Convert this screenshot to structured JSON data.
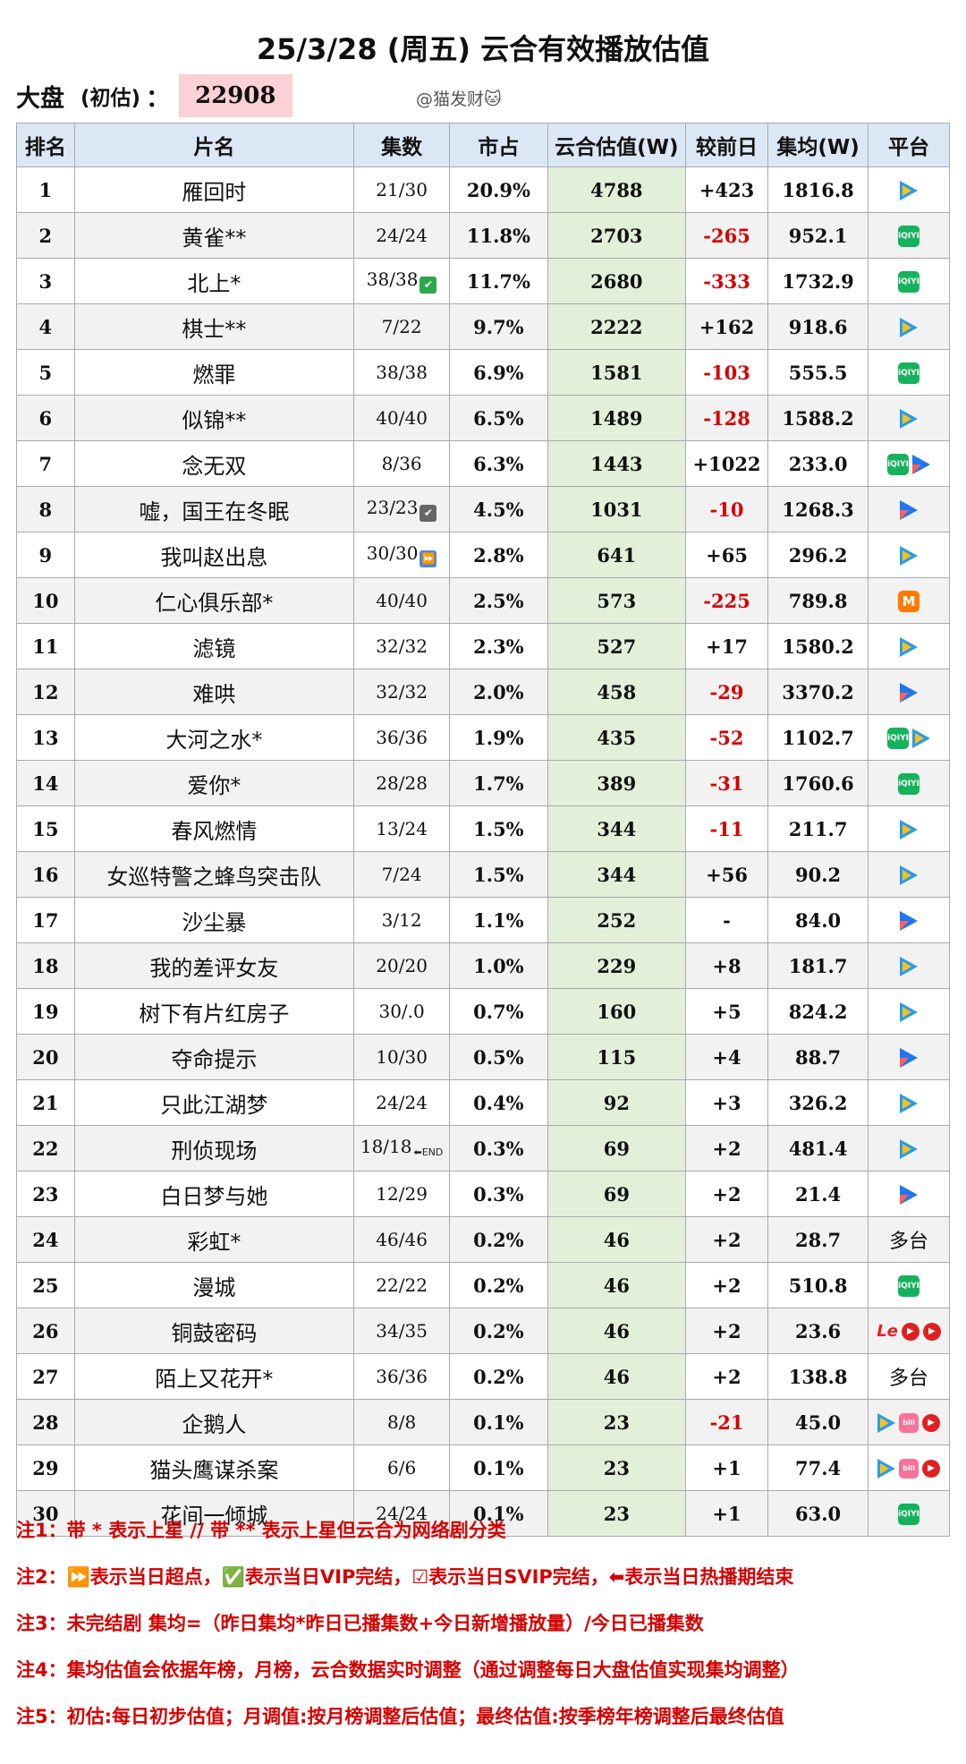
{
  "title": "25/3/28 (周五) 云合有效播放估值",
  "summary": {
    "label": "大盘",
    "sub": "(初估)",
    "colon": "：",
    "value": "22908"
  },
  "credit": "@猫发财🐱",
  "headers": [
    "排名",
    "片名",
    "集数",
    "市占",
    "云合估值(W)",
    "较前日",
    "集均(W)",
    "平台"
  ],
  "rows": [
    {
      "rank": "1",
      "name": "雁回时",
      "ep": "21/30",
      "mark": "",
      "share": "20.9%",
      "est": "4788",
      "chg": "+423",
      "avg": "1816.8",
      "plat": [
        "tencent-icon"
      ]
    },
    {
      "rank": "2",
      "name": "黄雀**",
      "ep": "24/24",
      "mark": "",
      "share": "11.8%",
      "est": "2703",
      "chg": "-265",
      "avg": "952.1",
      "plat": [
        "iqiyi-icon"
      ]
    },
    {
      "rank": "3",
      "name": "北上*",
      "ep": "38/38",
      "mark": "vip",
      "share": "11.7%",
      "est": "2680",
      "chg": "-333",
      "avg": "1732.9",
      "plat": [
        "iqiyi-icon"
      ]
    },
    {
      "rank": "4",
      "name": "棋士**",
      "ep": "7/22",
      "mark": "",
      "share": "9.7%",
      "est": "2222",
      "chg": "+162",
      "avg": "918.6",
      "plat": [
        "tencent-icon"
      ]
    },
    {
      "rank": "5",
      "name": "燃罪",
      "ep": "38/38",
      "mark": "",
      "share": "6.9%",
      "est": "1581",
      "chg": "-103",
      "avg": "555.5",
      "plat": [
        "iqiyi-icon"
      ]
    },
    {
      "rank": "6",
      "name": "似锦**",
      "ep": "40/40",
      "mark": "",
      "share": "6.5%",
      "est": "1489",
      "chg": "-128",
      "avg": "1588.2",
      "plat": [
        "tencent-icon"
      ]
    },
    {
      "rank": "7",
      "name": "念无双",
      "ep": "8/36",
      "mark": "",
      "share": "6.3%",
      "est": "1443",
      "chg": "+1022",
      "avg": "233.0",
      "plat": [
        "iqiyi-icon",
        "youku-icon"
      ]
    },
    {
      "rank": "8",
      "name": "嘘，国王在冬眠",
      "ep": "23/23",
      "mark": "svip",
      "share": "4.5%",
      "est": "1031",
      "chg": "-10",
      "avg": "1268.3",
      "plat": [
        "youku-icon"
      ]
    },
    {
      "rank": "9",
      "name": "我叫赵出息",
      "ep": "30/30",
      "mark": "chao",
      "share": "2.8%",
      "est": "641",
      "chg": "+65",
      "avg": "296.2",
      "plat": [
        "tencent-icon"
      ]
    },
    {
      "rank": "10",
      "name": "仁心俱乐部*",
      "ep": "40/40",
      "mark": "",
      "share": "2.5%",
      "est": "573",
      "chg": "-225",
      "avg": "789.8",
      "plat": [
        "mango-icon"
      ]
    },
    {
      "rank": "11",
      "name": "滤镜",
      "ep": "32/32",
      "mark": "",
      "share": "2.3%",
      "est": "527",
      "chg": "+17",
      "avg": "1580.2",
      "plat": [
        "tencent-icon"
      ]
    },
    {
      "rank": "12",
      "name": "难哄",
      "ep": "32/32",
      "mark": "",
      "share": "2.0%",
      "est": "458",
      "chg": "-29",
      "avg": "3370.2",
      "plat": [
        "youku-icon"
      ]
    },
    {
      "rank": "13",
      "name": "大河之水*",
      "ep": "36/36",
      "mark": "",
      "share": "1.9%",
      "est": "435",
      "chg": "-52",
      "avg": "1102.7",
      "plat": [
        "iqiyi-icon",
        "tencent-icon"
      ]
    },
    {
      "rank": "14",
      "name": "爱你*",
      "ep": "28/28",
      "mark": "",
      "share": "1.7%",
      "est": "389",
      "chg": "-31",
      "avg": "1760.6",
      "plat": [
        "iqiyi-icon"
      ]
    },
    {
      "rank": "15",
      "name": "春风燃情",
      "ep": "13/24",
      "mark": "",
      "share": "1.5%",
      "est": "344",
      "chg": "-11",
      "avg": "211.7",
      "plat": [
        "tencent-icon"
      ]
    },
    {
      "rank": "16",
      "name": "女巡特警之蜂鸟突击队",
      "ep": "7/24",
      "mark": "",
      "share": "1.5%",
      "est": "344",
      "chg": "+56",
      "avg": "90.2",
      "plat": [
        "tencent-icon"
      ]
    },
    {
      "rank": "17",
      "name": "沙尘暴",
      "ep": "3/12",
      "mark": "",
      "share": "1.1%",
      "est": "252",
      "chg": "-",
      "avg": "84.0",
      "plat": [
        "youku-icon"
      ]
    },
    {
      "rank": "18",
      "name": "我的差评女友",
      "ep": "20/20",
      "mark": "",
      "share": "1.0%",
      "est": "229",
      "chg": "+8",
      "avg": "181.7",
      "plat": [
        "tencent-icon"
      ]
    },
    {
      "rank": "19",
      "name": "树下有片红房子",
      "ep": "30/.0",
      "mark": "",
      "share": "0.7%",
      "est": "160",
      "chg": "+5",
      "avg": "824.2",
      "plat": [
        "tencent-icon"
      ]
    },
    {
      "rank": "20",
      "name": "夺命提示",
      "ep": "10/30",
      "mark": "",
      "share": "0.5%",
      "est": "115",
      "chg": "+4",
      "avg": "88.7",
      "plat": [
        "youku-icon"
      ]
    },
    {
      "rank": "21",
      "name": "只此江湖梦",
      "ep": "24/24",
      "mark": "",
      "share": "0.4%",
      "est": "92",
      "chg": "+3",
      "avg": "326.2",
      "plat": [
        "tencent-icon"
      ]
    },
    {
      "rank": "22",
      "name": "刑侦现场",
      "ep": "18/18",
      "mark": "end",
      "share": "0.3%",
      "est": "69",
      "chg": "+2",
      "avg": "481.4",
      "plat": [
        "tencent-icon"
      ]
    },
    {
      "rank": "23",
      "name": "白日梦与她",
      "ep": "12/29",
      "mark": "",
      "share": "0.3%",
      "est": "69",
      "chg": "+2",
      "avg": "21.4",
      "plat": [
        "youku-icon"
      ]
    },
    {
      "rank": "24",
      "name": "彩虹*",
      "ep": "46/46",
      "mark": "",
      "share": "0.2%",
      "est": "46",
      "chg": "+2",
      "avg": "28.7",
      "plat": [],
      "plat_text": "多台"
    },
    {
      "rank": "25",
      "name": "漫城",
      "ep": "22/22",
      "mark": "",
      "share": "0.2%",
      "est": "46",
      "chg": "+2",
      "avg": "510.8",
      "plat": [
        "iqiyi-icon"
      ]
    },
    {
      "rank": "26",
      "name": "铜鼓密码",
      "ep": "34/35",
      "mark": "",
      "share": "0.2%",
      "est": "46",
      "chg": "+2",
      "avg": "23.6",
      "plat": [
        "letv-icon",
        "red-play-icon",
        "red-play-icon"
      ]
    },
    {
      "rank": "27",
      "name": "陌上又花开*",
      "ep": "36/36",
      "mark": "",
      "share": "0.2%",
      "est": "46",
      "chg": "+2",
      "avg": "138.8",
      "plat": [],
      "plat_text": "多台"
    },
    {
      "rank": "28",
      "name": "企鹅人",
      "ep": "8/8",
      "mark": "",
      "share": "0.1%",
      "est": "23",
      "chg": "-21",
      "avg": "45.0",
      "plat": [
        "tencent-icon",
        "bilibili-icon",
        "red-play-icon"
      ]
    },
    {
      "rank": "29",
      "name": "猫头鹰谋杀案",
      "ep": "6/6",
      "mark": "",
      "share": "0.1%",
      "est": "23",
      "chg": "+1",
      "avg": "77.4",
      "plat": [
        "tencent-icon",
        "bilibili-icon",
        "red-play-icon"
      ]
    },
    {
      "rank": "30",
      "name": "花间一倾城",
      "ep": "24/24",
      "mark": "",
      "share": "0.1%",
      "est": "23",
      "chg": "+1",
      "avg": "63.0",
      "plat": [
        "iqiyi-icon"
      ]
    }
  ],
  "notes": [
    "注1：带 * 表示上星 // 带 ** 表示上星但云合为网络剧分类",
    "注2：⏩表示当日超点，✅表示当日VIP完结，☑表示当日SVIP完结，⬅表示当日热播期结束",
    "注3：未完结剧 集均=（昨日集均*昨日已播集数+今日新增播放量）/今日已播集数",
    "注4：集均估值会依据年榜，月榜，云合数据实时调整（通过调整每日大盘估值实现集均调整）",
    "注5：初估:每日初步估值；月调值:按月榜调整后估值；最终估值:按季榜年榜调整后最终估值"
  ]
}
